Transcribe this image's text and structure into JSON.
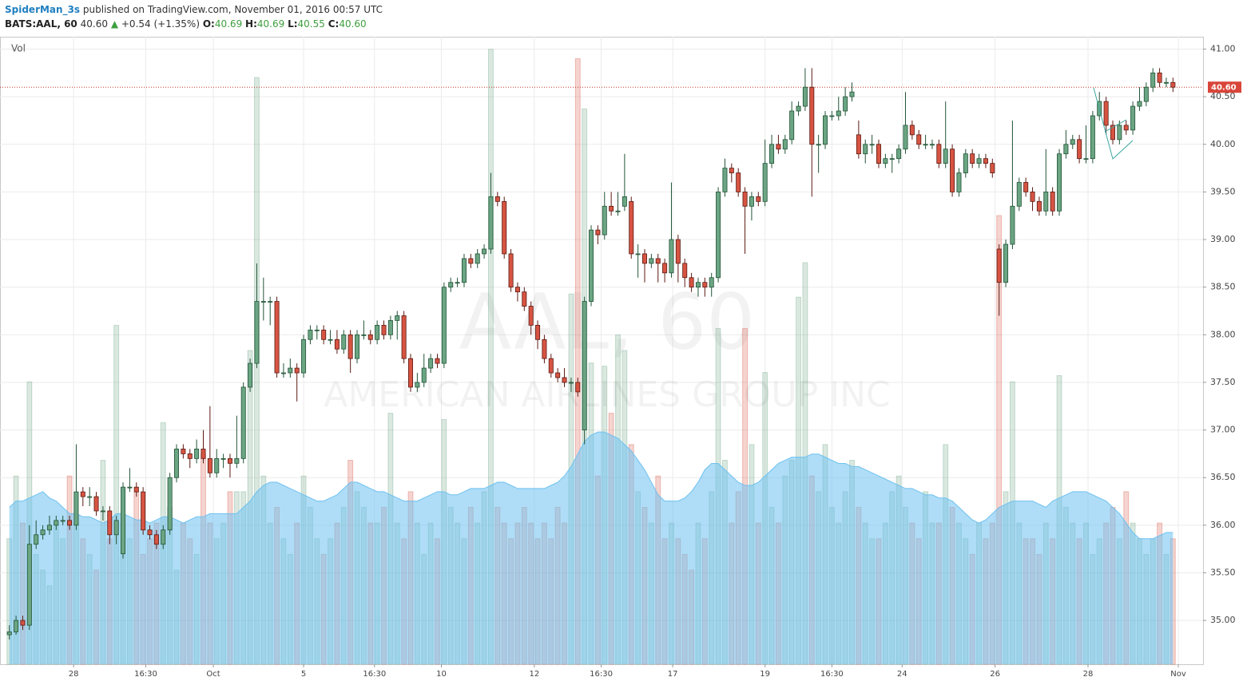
{
  "header": {
    "user": "SpiderMan_3s",
    "published": "published on TradingView.com, November 01, 2016 00:57 UTC",
    "symbol": "BATS:AAL, 60",
    "last": "40.60",
    "change": "+0.54 (+1.35%)",
    "o_label": "O:",
    "o": "40.69",
    "h_label": "H:",
    "h": "40.69",
    "l_label": "L:",
    "l": "40.55",
    "c_label": "C:",
    "c": "40.60"
  },
  "chart_data": {
    "type": "candlestick",
    "watermark": "AAL, 60",
    "watermark_sub": "AMERICAN AIRLINES GROUP INC",
    "volume_label": "Vol",
    "up_color": "#6ba583",
    "down_color": "#d75442",
    "grid": true,
    "ylim": [
      34.54,
      41.13
    ],
    "yticks": [
      {
        "value": 35,
        "label": "35.00"
      },
      {
        "value": 35.5,
        "label": "35.50"
      },
      {
        "value": 36,
        "label": "36.00"
      },
      {
        "value": 36.5,
        "label": "36.50"
      },
      {
        "value": 37,
        "label": "37.00"
      },
      {
        "value": 37.5,
        "label": "37.50"
      },
      {
        "value": 38,
        "label": "38.00"
      },
      {
        "value": 38.5,
        "label": "38.50"
      },
      {
        "value": 39,
        "label": "39.00"
      },
      {
        "value": 39.5,
        "label": "39.50"
      },
      {
        "value": 40,
        "label": "40.00"
      },
      {
        "value": 40.5,
        "label": "40.50"
      },
      {
        "value": 41,
        "label": "41.00"
      }
    ],
    "last_price": {
      "value": 40.6,
      "label": "40.60"
    },
    "xlim": [
      -1.4,
      178.5
    ],
    "xticks": [
      {
        "value": 9.6,
        "label": "28"
      },
      {
        "value": 20.4,
        "label": "16:30"
      },
      {
        "value": 30.5,
        "label": "Oct"
      },
      {
        "value": 44,
        "label": "5"
      },
      {
        "value": 54.6,
        "label": "16:30"
      },
      {
        "value": 64.6,
        "label": "10"
      },
      {
        "value": 78.5,
        "label": "12"
      },
      {
        "value": 88.5,
        "label": "16:30"
      },
      {
        "value": 99.2,
        "label": "17"
      },
      {
        "value": 113,
        "label": "19"
      },
      {
        "value": 123,
        "label": "16:30"
      },
      {
        "value": 133.5,
        "label": "24"
      },
      {
        "value": 147.4,
        "label": "26"
      },
      {
        "value": 161.3,
        "label": "28"
      },
      {
        "value": 174.8,
        "label": "Nov"
      }
    ],
    "candles": [
      [
        34.85,
        34.95,
        34.8,
        34.88
      ],
      [
        34.88,
        35.05,
        34.85,
        35.0
      ],
      [
        35.0,
        35.05,
        34.9,
        34.95
      ],
      [
        34.95,
        36.0,
        34.9,
        35.8
      ],
      [
        35.8,
        36.05,
        35.75,
        35.9
      ],
      [
        35.9,
        36.0,
        35.85,
        35.95
      ],
      [
        35.95,
        36.1,
        35.9,
        36.0
      ],
      [
        36.0,
        36.1,
        35.95,
        36.05
      ],
      [
        36.05,
        36.1,
        36.0,
        36.05
      ],
      [
        36.05,
        36.1,
        35.95,
        36.0
      ],
      [
        36.0,
        36.85,
        35.95,
        36.35
      ],
      [
        36.35,
        36.4,
        36.2,
        36.3
      ],
      [
        36.3,
        36.4,
        36.2,
        36.3
      ],
      [
        36.3,
        36.35,
        36.1,
        36.15
      ],
      [
        36.15,
        36.2,
        36.05,
        36.15
      ],
      [
        36.15,
        36.2,
        35.8,
        35.9
      ],
      [
        35.9,
        36.1,
        35.8,
        36.05
      ],
      [
        35.7,
        36.45,
        35.65,
        36.4
      ],
      [
        36.4,
        36.6,
        36.35,
        36.4
      ],
      [
        36.4,
        36.45,
        36.3,
        36.35
      ],
      [
        36.35,
        36.4,
        35.9,
        35.95
      ],
      [
        35.95,
        36.0,
        35.85,
        35.9
      ],
      [
        35.9,
        35.95,
        35.75,
        35.8
      ],
      [
        35.8,
        36.0,
        35.75,
        35.95
      ],
      [
        35.95,
        36.55,
        35.9,
        36.5
      ],
      [
        36.5,
        36.85,
        36.45,
        36.8
      ],
      [
        36.8,
        36.85,
        36.7,
        36.75
      ],
      [
        36.75,
        36.8,
        36.6,
        36.7
      ],
      [
        36.7,
        36.9,
        36.65,
        36.8
      ],
      [
        36.8,
        37.0,
        36.65,
        36.7
      ],
      [
        36.7,
        37.25,
        36.5,
        36.55
      ],
      [
        36.55,
        36.8,
        36.5,
        36.7
      ],
      [
        36.7,
        36.75,
        36.6,
        36.7
      ],
      [
        36.7,
        36.75,
        36.5,
        36.65
      ],
      [
        36.65,
        37.15,
        36.6,
        36.7
      ],
      [
        36.7,
        37.5,
        36.65,
        37.45
      ],
      [
        37.45,
        37.75,
        37.4,
        37.7
      ],
      [
        37.7,
        38.75,
        37.65,
        38.35
      ],
      [
        38.35,
        38.6,
        38.15,
        38.35
      ],
      [
        38.35,
        38.4,
        38.1,
        38.35
      ],
      [
        38.35,
        38.4,
        37.55,
        37.6
      ],
      [
        37.6,
        37.7,
        37.55,
        37.6
      ],
      [
        37.6,
        37.75,
        37.55,
        37.65
      ],
      [
        37.65,
        37.7,
        37.3,
        37.6
      ],
      [
        37.6,
        38.0,
        37.55,
        37.95
      ],
      [
        37.95,
        38.1,
        37.9,
        38.05
      ],
      [
        38.05,
        38.1,
        37.95,
        38.05
      ],
      [
        38.05,
        38.1,
        37.9,
        37.95
      ],
      [
        37.95,
        38.05,
        37.9,
        37.95
      ],
      [
        37.95,
        38.05,
        37.8,
        37.85
      ],
      [
        37.85,
        38.05,
        37.8,
        38.0
      ],
      [
        38.0,
        38.05,
        37.6,
        37.75
      ],
      [
        37.75,
        38.05,
        37.7,
        38.0
      ],
      [
        38.0,
        38.15,
        37.95,
        38.0
      ],
      [
        38.0,
        38.05,
        37.9,
        37.95
      ],
      [
        37.95,
        38.15,
        37.9,
        38.1
      ],
      [
        38.1,
        38.15,
        37.95,
        38.0
      ],
      [
        38.0,
        38.2,
        37.95,
        38.15
      ],
      [
        38.15,
        38.25,
        37.95,
        38.2
      ],
      [
        38.2,
        38.25,
        37.7,
        37.75
      ],
      [
        37.75,
        37.8,
        37.4,
        37.45
      ],
      [
        37.45,
        37.6,
        37.4,
        37.5
      ],
      [
        37.5,
        37.8,
        37.45,
        37.65
      ],
      [
        37.65,
        37.8,
        37.6,
        37.75
      ],
      [
        37.75,
        37.8,
        37.65,
        37.7
      ],
      [
        37.7,
        38.55,
        37.65,
        38.5
      ],
      [
        38.5,
        38.6,
        38.45,
        38.55
      ],
      [
        38.55,
        38.6,
        38.5,
        38.55
      ],
      [
        38.55,
        38.85,
        38.5,
        38.8
      ],
      [
        38.8,
        38.85,
        38.7,
        38.75
      ],
      [
        38.75,
        38.9,
        38.7,
        38.85
      ],
      [
        38.85,
        38.95,
        38.8,
        38.9
      ],
      [
        38.9,
        39.7,
        38.85,
        39.45
      ],
      [
        39.45,
        39.5,
        39.35,
        39.4
      ],
      [
        39.4,
        39.45,
        38.8,
        38.85
      ],
      [
        38.85,
        38.9,
        38.45,
        38.5
      ],
      [
        38.5,
        38.55,
        38.35,
        38.45
      ],
      [
        38.45,
        38.5,
        38.25,
        38.3
      ],
      [
        38.3,
        38.35,
        38.0,
        38.1
      ],
      [
        38.1,
        38.15,
        37.85,
        37.95
      ],
      [
        37.95,
        38.0,
        37.7,
        37.75
      ],
      [
        37.75,
        37.8,
        37.55,
        37.6
      ],
      [
        37.6,
        37.65,
        37.5,
        37.55
      ],
      [
        37.55,
        37.65,
        37.45,
        37.5
      ],
      [
        37.5,
        37.55,
        37.4,
        37.5
      ],
      [
        37.5,
        37.55,
        37.35,
        37.4
      ],
      [
        37.0,
        38.4,
        36.85,
        38.35
      ],
      [
        38.35,
        39.15,
        38.3,
        39.1
      ],
      [
        39.1,
        39.15,
        38.95,
        39.05
      ],
      [
        39.05,
        39.5,
        39.0,
        39.35
      ],
      [
        39.35,
        39.5,
        39.25,
        39.3
      ],
      [
        39.3,
        39.5,
        39.25,
        39.3
      ],
      [
        39.35,
        39.9,
        39.3,
        39.45
      ],
      [
        39.4,
        39.45,
        38.8,
        38.85
      ],
      [
        38.85,
        38.95,
        38.6,
        38.85
      ],
      [
        38.85,
        38.9,
        38.55,
        38.75
      ],
      [
        38.75,
        38.85,
        38.7,
        38.8
      ],
      [
        38.8,
        38.85,
        38.55,
        38.75
      ],
      [
        38.75,
        38.8,
        38.55,
        38.65
      ],
      [
        38.65,
        39.6,
        38.6,
        39.0
      ],
      [
        39.0,
        39.05,
        38.55,
        38.75
      ],
      [
        38.75,
        38.8,
        38.5,
        38.6
      ],
      [
        38.6,
        38.65,
        38.45,
        38.5
      ],
      [
        38.5,
        38.6,
        38.4,
        38.55
      ],
      [
        38.55,
        38.6,
        38.4,
        38.5
      ],
      [
        38.5,
        38.65,
        38.4,
        38.6
      ],
      [
        38.6,
        39.55,
        38.55,
        39.5
      ],
      [
        39.5,
        39.85,
        39.45,
        39.75
      ],
      [
        39.75,
        39.8,
        39.6,
        39.7
      ],
      [
        39.7,
        39.75,
        39.45,
        39.5
      ],
      [
        39.5,
        39.55,
        38.85,
        39.35
      ],
      [
        39.35,
        39.5,
        39.2,
        39.45
      ],
      [
        39.45,
        39.5,
        39.35,
        39.4
      ],
      [
        39.4,
        40.05,
        39.35,
        39.8
      ],
      [
        39.8,
        40.1,
        39.75,
        40.0
      ],
      [
        40.0,
        40.1,
        39.9,
        39.95
      ],
      [
        39.95,
        40.1,
        39.9,
        40.05
      ],
      [
        40.05,
        40.45,
        40.0,
        40.35
      ],
      [
        40.35,
        40.45,
        40.3,
        40.4
      ],
      [
        40.4,
        40.8,
        40.35,
        40.6
      ],
      [
        40.6,
        40.8,
        39.45,
        40.0
      ],
      [
        40.0,
        40.1,
        39.7,
        40.0
      ],
      [
        40.0,
        40.35,
        39.95,
        40.3
      ],
      [
        40.3,
        40.35,
        40.25,
        40.3
      ],
      [
        40.3,
        40.5,
        40.25,
        40.35
      ],
      [
        40.35,
        40.6,
        40.3,
        40.5
      ],
      [
        40.5,
        40.65,
        40.45,
        40.55
      ],
      [
        40.1,
        40.25,
        39.85,
        39.9
      ],
      [
        39.9,
        40.05,
        39.8,
        40.0
      ],
      [
        40.0,
        40.1,
        39.9,
        40.0
      ],
      [
        40.0,
        40.05,
        39.75,
        39.8
      ],
      [
        39.8,
        39.9,
        39.75,
        39.85
      ],
      [
        39.85,
        39.9,
        39.7,
        39.85
      ],
      [
        39.85,
        40.0,
        39.8,
        39.95
      ],
      [
        39.95,
        40.55,
        39.9,
        40.2
      ],
      [
        40.2,
        40.25,
        40.05,
        40.1
      ],
      [
        40.1,
        40.15,
        39.95,
        40.0
      ],
      [
        40.0,
        40.1,
        39.95,
        40.0
      ],
      [
        40.0,
        40.05,
        39.95,
        40.0
      ],
      [
        40.0,
        40.05,
        39.75,
        39.8
      ],
      [
        39.8,
        40.45,
        39.75,
        39.95
      ],
      [
        39.95,
        40.0,
        39.45,
        39.5
      ],
      [
        39.5,
        39.75,
        39.45,
        39.7
      ],
      [
        39.7,
        39.95,
        39.65,
        39.9
      ],
      [
        39.9,
        39.95,
        39.75,
        39.8
      ],
      [
        39.8,
        39.9,
        39.75,
        39.85
      ],
      [
        39.85,
        39.9,
        39.75,
        39.8
      ],
      [
        39.8,
        39.85,
        39.65,
        39.7
      ],
      [
        38.9,
        38.95,
        38.2,
        38.55
      ],
      [
        38.55,
        39.0,
        38.5,
        38.95
      ],
      [
        38.95,
        40.25,
        38.9,
        39.35
      ],
      [
        39.35,
        39.65,
        39.3,
        39.6
      ],
      [
        39.6,
        39.65,
        39.45,
        39.5
      ],
      [
        39.5,
        39.55,
        39.3,
        39.4
      ],
      [
        39.4,
        39.45,
        39.25,
        39.3
      ],
      [
        39.3,
        39.95,
        39.25,
        39.5
      ],
      [
        39.5,
        39.55,
        39.25,
        39.3
      ],
      [
        39.3,
        39.95,
        39.25,
        39.9
      ],
      [
        39.9,
        40.15,
        39.85,
        40.0
      ],
      [
        40.0,
        40.1,
        39.95,
        40.05
      ],
      [
        40.05,
        40.1,
        39.8,
        39.85
      ],
      [
        39.85,
        40.2,
        39.8,
        39.85
      ],
      [
        39.85,
        40.35,
        39.8,
        40.3
      ],
      [
        40.3,
        40.55,
        40.25,
        40.45
      ],
      [
        40.45,
        40.5,
        40.1,
        40.2
      ],
      [
        40.2,
        40.25,
        40.0,
        40.05
      ],
      [
        40.05,
        40.25,
        40.0,
        40.2
      ],
      [
        40.2,
        40.25,
        40.1,
        40.15
      ],
      [
        40.15,
        40.45,
        40.1,
        40.4
      ],
      [
        40.4,
        40.6,
        40.35,
        40.45
      ],
      [
        40.45,
        40.65,
        40.4,
        40.6
      ],
      [
        40.6,
        40.8,
        40.55,
        40.75
      ],
      [
        40.75,
        40.8,
        40.6,
        40.65
      ],
      [
        40.65,
        40.7,
        40.6,
        40.65
      ],
      [
        40.65,
        40.7,
        40.55,
        40.6
      ]
    ],
    "volume_ylim": [
      0,
      200
    ],
    "volume": [
      40,
      60,
      45,
      90,
      35,
      30,
      25,
      45,
      40,
      60,
      45,
      40,
      35,
      30,
      65,
      40,
      108,
      45,
      40,
      55,
      35,
      40,
      45,
      77,
      50,
      30,
      45,
      40,
      35,
      67,
      45,
      40,
      45,
      55,
      55,
      55,
      100,
      187,
      60,
      45,
      50,
      40,
      35,
      45,
      60,
      50,
      40,
      35,
      40,
      45,
      50,
      65,
      55,
      50,
      45,
      45,
      50,
      80,
      45,
      40,
      55,
      45,
      35,
      45,
      40,
      78,
      50,
      45,
      40,
      50,
      45,
      55,
      196,
      50,
      45,
      40,
      45,
      50,
      45,
      40,
      45,
      40,
      50,
      45,
      118,
      193,
      177,
      96,
      60,
      95,
      80,
      105,
      100,
      70,
      55,
      50,
      45,
      60,
      40,
      45,
      40,
      35,
      30,
      45,
      40,
      55,
      107,
      65,
      45,
      55,
      107,
      70,
      45,
      93,
      50,
      45,
      60,
      65,
      117,
      128,
      60,
      55,
      70,
      50,
      45,
      55,
      65,
      50,
      45,
      40,
      40,
      45,
      55,
      60,
      50,
      45,
      40,
      55,
      45,
      45,
      70,
      50,
      45,
      40,
      35,
      45,
      40,
      45,
      143,
      55,
      90,
      45,
      40,
      40,
      35,
      45,
      40,
      92,
      50,
      45,
      40,
      45,
      35,
      40,
      45,
      50,
      40,
      55,
      45,
      40,
      35,
      40,
      45,
      35,
      40
    ],
    "volume_ma": [
      50,
      52,
      52,
      53,
      54,
      55,
      53,
      52,
      50,
      48,
      48,
      47,
      47,
      46,
      45,
      46,
      48,
      48,
      47,
      46,
      46,
      45,
      46,
      47,
      47,
      46,
      45,
      46,
      47,
      47,
      48,
      48,
      48,
      48,
      48,
      50,
      52,
      55,
      57,
      58,
      58,
      57,
      56,
      55,
      54,
      53,
      52,
      52,
      53,
      54,
      56,
      58,
      58,
      57,
      56,
      55,
      55,
      54,
      53,
      52,
      52,
      52,
      53,
      54,
      55,
      55,
      54,
      54,
      55,
      56,
      56,
      56,
      57,
      58,
      58,
      57,
      56,
      56,
      56,
      56,
      56,
      57,
      58,
      60,
      63,
      67,
      71,
      73,
      74,
      74,
      73,
      72,
      70,
      68,
      65,
      62,
      58,
      54,
      52,
      52,
      52,
      53,
      55,
      58,
      62,
      64,
      64,
      62,
      60,
      58,
      57,
      57,
      58,
      60,
      62,
      64,
      65,
      66,
      66,
      66,
      67,
      67,
      66,
      65,
      64,
      64,
      63,
      63,
      62,
      61,
      60,
      59,
      58,
      57,
      56,
      56,
      55,
      54,
      54,
      53,
      53,
      52,
      50,
      48,
      46,
      45,
      46,
      48,
      50,
      51,
      52,
      52,
      52,
      52,
      51,
      50,
      52,
      53,
      54,
      55,
      55,
      55,
      54,
      53,
      52,
      50,
      48,
      45,
      42,
      40,
      40,
      40,
      41,
      42,
      42
    ],
    "volume_ma_color": "#6ec1f0"
  }
}
